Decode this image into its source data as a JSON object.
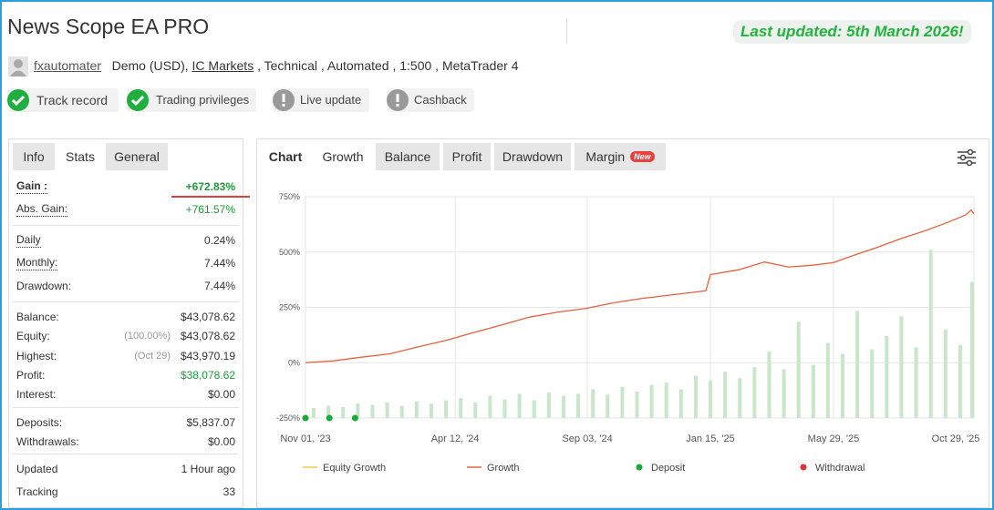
{
  "header": {
    "title": "News Scope EA PRO",
    "last_updated": "Last updated: 5th March 2026!"
  },
  "account": {
    "user": "fxautomater",
    "type": "Demo (USD),",
    "broker": "IC Markets",
    "details": ", Technical , Automated , 1:500 , MetaTrader 4"
  },
  "badges": [
    {
      "label": "Track record",
      "status": "ok"
    },
    {
      "label": "Trading privileges",
      "status": "ok"
    },
    {
      "label": "Live update",
      "status": "warn"
    },
    {
      "label": "Cashback",
      "status": "warn"
    }
  ],
  "left_tabs": {
    "items": [
      "Info",
      "Stats",
      "General"
    ],
    "active": 1
  },
  "stats": [
    [
      {
        "label": "Gain :",
        "value": "+672.83%",
        "color": "#1a9c3a",
        "bold": true,
        "underline": true,
        "highlight": true
      },
      {
        "label": "Abs. Gain:",
        "value": "+761.57%",
        "color": "#1a9c3a",
        "underline": true
      }
    ],
    [
      {
        "label": "Daily",
        "value": "0.24%",
        "underline": true
      },
      {
        "label": "Monthly:",
        "value": "7.44%",
        "underline": true
      },
      {
        "label": "Drawdown:",
        "value": "7.44%"
      }
    ],
    [
      {
        "label": "Balance:",
        "value": "$43,078.62"
      },
      {
        "label": "Equity:",
        "note": "(100.00%)",
        "value": "$43,078.62"
      },
      {
        "label": "Highest:",
        "note": "(Oct 29)",
        "value": "$43,970.19"
      },
      {
        "label": "Profit:",
        "value": "$38,078.62",
        "color": "#1a9c3a"
      },
      {
        "label": "Interest:",
        "value": "$0.00"
      }
    ],
    [
      {
        "label": "Deposits:",
        "value": "$5,837.07"
      },
      {
        "label": "Withdrawals:",
        "value": "$0.00"
      }
    ],
    [
      {
        "label": "Updated",
        "value": "1 Hour ago"
      },
      {
        "label": "Tracking",
        "value": "33"
      }
    ]
  ],
  "chart_tabs": {
    "items": [
      "Chart",
      "Growth",
      "Balance",
      "Profit",
      "Drawdown",
      "Margin"
    ],
    "active": 1,
    "new_badge": "New"
  },
  "chart_data": {
    "type": "line",
    "xlim": [
      "2023-11-01",
      "2025-10-29"
    ],
    "xticks": [
      {
        "value": "2023-11-01",
        "label": "Nov 01, '23"
      },
      {
        "value": "2024-04-12",
        "label": "Apr 12, '24"
      },
      {
        "value": "2024-09-03",
        "label": "Sep 03, '24"
      },
      {
        "value": "2025-01-15",
        "label": "Jan 15, '25"
      },
      {
        "value": "2025-05-29",
        "label": "May 29, '25"
      },
      {
        "value": "2025-10-29",
        "label": "Oct 29, '25"
      }
    ],
    "ylim": [
      -250,
      750
    ],
    "yticks": [
      {
        "value": -250,
        "label": "-250%"
      },
      {
        "value": 0,
        "label": "0%"
      },
      {
        "value": 250,
        "label": "250%"
      },
      {
        "value": 500,
        "label": "500%"
      },
      {
        "value": 750,
        "label": "750%"
      }
    ],
    "grid": true,
    "bars": {
      "color": "#c8e6c9",
      "x": [
        "2023-11-10",
        "2023-11-26",
        "2023-12-12",
        "2023-12-28",
        "2024-01-13",
        "2024-01-29",
        "2024-02-14",
        "2024-03-01",
        "2024-03-17",
        "2024-04-02",
        "2024-04-18",
        "2024-05-04",
        "2024-05-20",
        "2024-06-05",
        "2024-06-21",
        "2024-07-07",
        "2024-07-23",
        "2024-08-08",
        "2024-08-24",
        "2024-09-09",
        "2024-09-25",
        "2024-10-11",
        "2024-10-27",
        "2024-11-12",
        "2024-11-28",
        "2024-12-14",
        "2024-12-30",
        "2025-01-15",
        "2025-01-31",
        "2025-02-16",
        "2025-03-04",
        "2025-03-20",
        "2025-04-05",
        "2025-04-21",
        "2025-05-07",
        "2025-05-23",
        "2025-06-08",
        "2025-06-24",
        "2025-07-10",
        "2025-07-26",
        "2025-08-11",
        "2025-08-27",
        "2025-09-12",
        "2025-09-28",
        "2025-10-14",
        "2025-10-27"
      ],
      "values": [
        -205,
        -195,
        -200,
        -185,
        -190,
        -180,
        -195,
        -175,
        -185,
        -170,
        -160,
        -180,
        -150,
        -165,
        -140,
        -170,
        -135,
        -150,
        -140,
        -120,
        -145,
        -110,
        -130,
        -100,
        -90,
        -120,
        -60,
        -80,
        -40,
        -70,
        -20,
        50,
        -30,
        185,
        -10,
        90,
        40,
        234,
        60,
        120,
        210,
        70,
        510,
        150,
        80,
        365
      ]
    },
    "series": [
      {
        "name": "Equity Growth",
        "color": "#f2c94c",
        "kind": "line",
        "x": [],
        "values": []
      },
      {
        "name": "Growth",
        "color": "#e8603c",
        "kind": "line",
        "x": [
          "2023-11-01",
          "2023-12-01",
          "2024-01-01",
          "2024-02-01",
          "2024-03-01",
          "2024-04-01",
          "2024-05-01",
          "2024-06-01",
          "2024-07-01",
          "2024-08-01",
          "2024-09-01",
          "2024-10-01",
          "2024-11-01",
          "2024-12-01",
          "2025-01-10",
          "2025-01-15",
          "2025-02-15",
          "2025-03-15",
          "2025-04-10",
          "2025-05-05",
          "2025-05-29",
          "2025-06-20",
          "2025-07-15",
          "2025-08-10",
          "2025-09-05",
          "2025-10-01",
          "2025-10-20",
          "2025-10-26",
          "2025-10-29"
        ],
        "values": [
          0,
          8,
          25,
          40,
          70,
          100,
          135,
          170,
          205,
          228,
          245,
          270,
          290,
          305,
          325,
          398,
          420,
          455,
          432,
          440,
          452,
          485,
          520,
          560,
          595,
          635,
          668,
          690,
          672
        ]
      },
      {
        "name": "Deposit",
        "color": "#1aaa3a",
        "kind": "points",
        "x": [
          "2023-11-01",
          "2023-11-27",
          "2023-12-25"
        ],
        "values": [
          -250,
          -250,
          -250
        ]
      },
      {
        "name": "Withdrawal",
        "color": "#e03030",
        "kind": "points",
        "x": [],
        "values": []
      }
    ]
  }
}
